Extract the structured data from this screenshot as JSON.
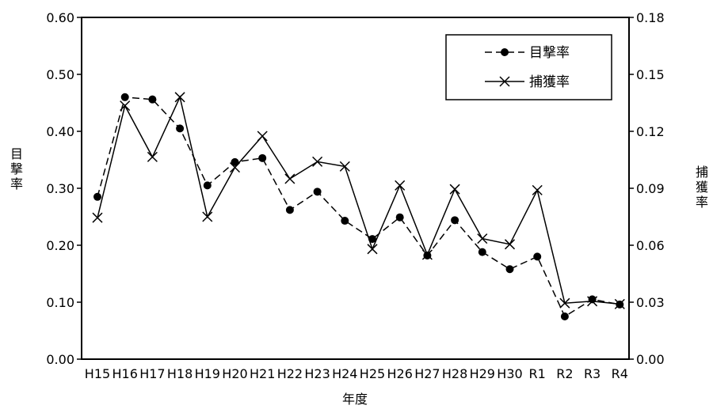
{
  "chart_data": {
    "type": "line",
    "categories": [
      "H15",
      "H16",
      "H17",
      "H18",
      "H19",
      "H20",
      "H21",
      "H22",
      "H23",
      "H24",
      "H25",
      "H26",
      "H27",
      "H28",
      "H29",
      "H30",
      "R1",
      "R2",
      "R3",
      "R4"
    ],
    "xlabel": "年度",
    "ylabel_left": "目撃率",
    "ylabel_right": "捕獲率",
    "ylim_left": [
      0,
      0.6
    ],
    "ylim_right": [
      0,
      0.18
    ],
    "yticks_left": [
      "0.00",
      "0.10",
      "0.20",
      "0.30",
      "0.40",
      "0.50",
      "0.60"
    ],
    "yticks_right": [
      "0.00",
      "0.03",
      "0.06",
      "0.09",
      "0.12",
      "0.15",
      "0.18"
    ],
    "grid": false,
    "legend_position": "top-right",
    "series": [
      {
        "name": "目撃率",
        "axis": "left",
        "style": "dashed-circle",
        "color": "#000000",
        "values": [
          0.285,
          0.46,
          0.456,
          0.405,
          0.305,
          0.346,
          0.353,
          0.262,
          0.294,
          0.243,
          0.211,
          0.249,
          0.182,
          0.244,
          0.188,
          0.158,
          0.18,
          0.075,
          0.105,
          0.096
        ]
      },
      {
        "name": "捕獲率",
        "axis": "right",
        "style": "solid-x",
        "color": "#000000",
        "values": [
          0.0745,
          0.1335,
          0.1065,
          0.138,
          0.075,
          0.101,
          0.1175,
          0.095,
          0.104,
          0.1015,
          0.058,
          0.0915,
          0.055,
          0.0895,
          0.0635,
          0.0605,
          0.089,
          0.0295,
          0.0305,
          0.029
        ]
      }
    ]
  }
}
